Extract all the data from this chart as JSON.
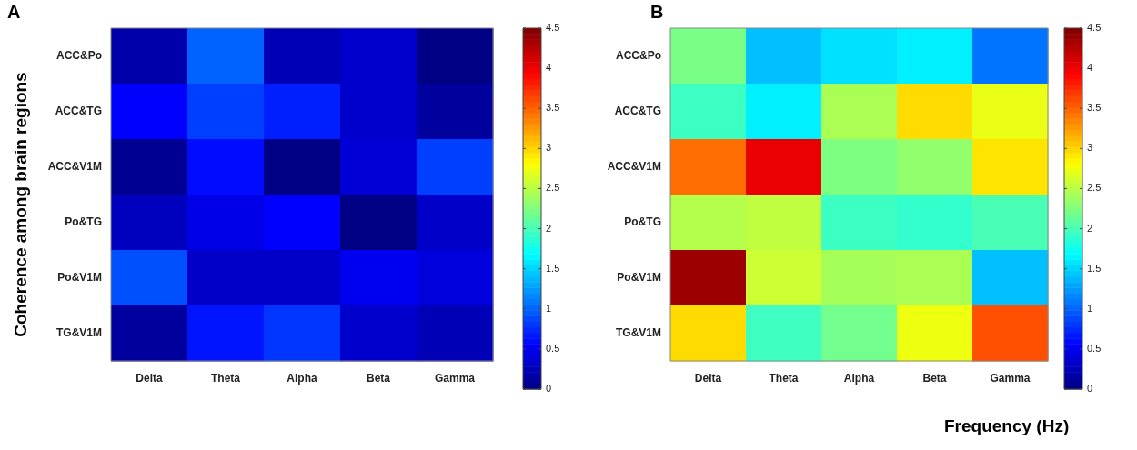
{
  "chart_data": [
    {
      "type": "heatmap",
      "title": "A",
      "ylabel": "Coherence among brain regions",
      "categories": [
        "Delta",
        "Theta",
        "Alpha",
        "Beta",
        "Gamma"
      ],
      "y_categories": [
        "ACC&Po",
        "ACC&TG",
        "ACC&V1M",
        "Po&TG",
        "Po&V1M",
        "TG&V1M"
      ],
      "cells": [
        [
          0.19,
          1.0,
          0.24,
          0.34,
          0.02
        ],
        [
          0.56,
          0.84,
          0.7,
          0.34,
          0.14
        ],
        [
          0.08,
          0.61,
          0.02,
          0.38,
          0.84
        ],
        [
          0.28,
          0.45,
          0.56,
          0.02,
          0.32
        ],
        [
          0.91,
          0.32,
          0.32,
          0.5,
          0.41
        ],
        [
          0.14,
          0.65,
          0.79,
          0.34,
          0.24
        ]
      ],
      "clim": [
        0,
        4.5
      ],
      "cticks": [
        0,
        0.5,
        1,
        1.5,
        2,
        2.5,
        3,
        3.5,
        4,
        4.5
      ]
    },
    {
      "type": "heatmap",
      "title": "B",
      "xlabel": "Frequency (Hz)",
      "categories": [
        "Delta",
        "Theta",
        "Alpha",
        "Beta",
        "Gamma"
      ],
      "y_categories": [
        "ACC&Po",
        "ACC&TG",
        "ACC&V1M",
        "Po&TG",
        "Po&V1M",
        "TG&V1M"
      ],
      "cells": [
        [
          2.22,
          1.41,
          1.55,
          1.62,
          1.07
        ],
        [
          1.95,
          1.62,
          2.44,
          2.97,
          2.72
        ],
        [
          3.45,
          4.03,
          2.24,
          2.33,
          2.93
        ],
        [
          2.48,
          2.53,
          1.95,
          1.91,
          2.01
        ],
        [
          4.37,
          2.59,
          2.42,
          2.44,
          1.41
        ],
        [
          2.97,
          1.96,
          2.19,
          2.74,
          3.59
        ]
      ],
      "clim": [
        0,
        4.5
      ],
      "cticks": [
        0,
        0.5,
        1,
        1.5,
        2,
        2.5,
        3,
        3.5,
        4,
        4.5
      ]
    }
  ]
}
